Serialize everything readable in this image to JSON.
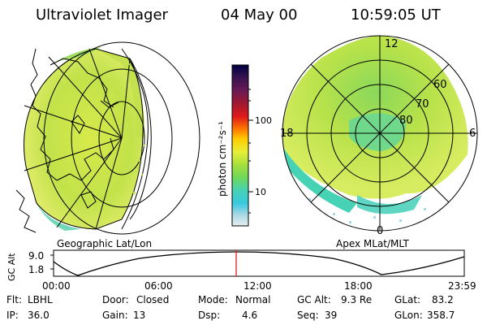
{
  "header": {
    "title": "Ultraviolet Imager",
    "date": "04 May 00",
    "time": "10:59:05 UT"
  },
  "left_panel": {
    "label": "Geographic Lat/Lon"
  },
  "right_panel": {
    "label": "Apex MLat/MLT",
    "mlt_labels": {
      "top": "12",
      "left": "18",
      "right": "6",
      "bottom": "0"
    },
    "lat_labels": [
      "60",
      "70",
      "80"
    ]
  },
  "colorbar": {
    "unit_label": "photon cm⁻²s⁻¹",
    "ticks": [
      "100",
      "10"
    ],
    "colors": [
      "#000044",
      "#2b0a4a",
      "#4a1a5c",
      "#7a1e4a",
      "#b0182a",
      "#e0181a",
      "#ff7a00",
      "#ffcc00",
      "#e8ee3a",
      "#a6e03a",
      "#6fd85a",
      "#46d2b4",
      "#38c8e0",
      "#a8d8e6",
      "#d6e6ea"
    ]
  },
  "altitude_strip": {
    "axis_label": "GC Alt",
    "y_ticks": [
      "9.0",
      "1.8"
    ],
    "x_ticks": [
      "00:00",
      "06:00",
      "12:00",
      "18:00",
      "23:59"
    ],
    "marker_color": "#e02020"
  },
  "footer": {
    "row1": [
      {
        "key": "Flt:",
        "value": "LBHL"
      },
      {
        "key": "Door:",
        "value": "Closed"
      },
      {
        "key": "Mode:",
        "value": "Normal"
      },
      {
        "key": "GC Alt:",
        "value": "9.3 Re"
      },
      {
        "key": "GLat:",
        "value": "83.2"
      }
    ],
    "row2": [
      {
        "key": "IP:",
        "value": "36.0"
      },
      {
        "key": "Gain:",
        "value": "13"
      },
      {
        "key": "Dsp:",
        "value": "4.6"
      },
      {
        "key": "Seq:",
        "value": "39"
      },
      {
        "key": "GLon:",
        "value": "358.7"
      }
    ]
  }
}
